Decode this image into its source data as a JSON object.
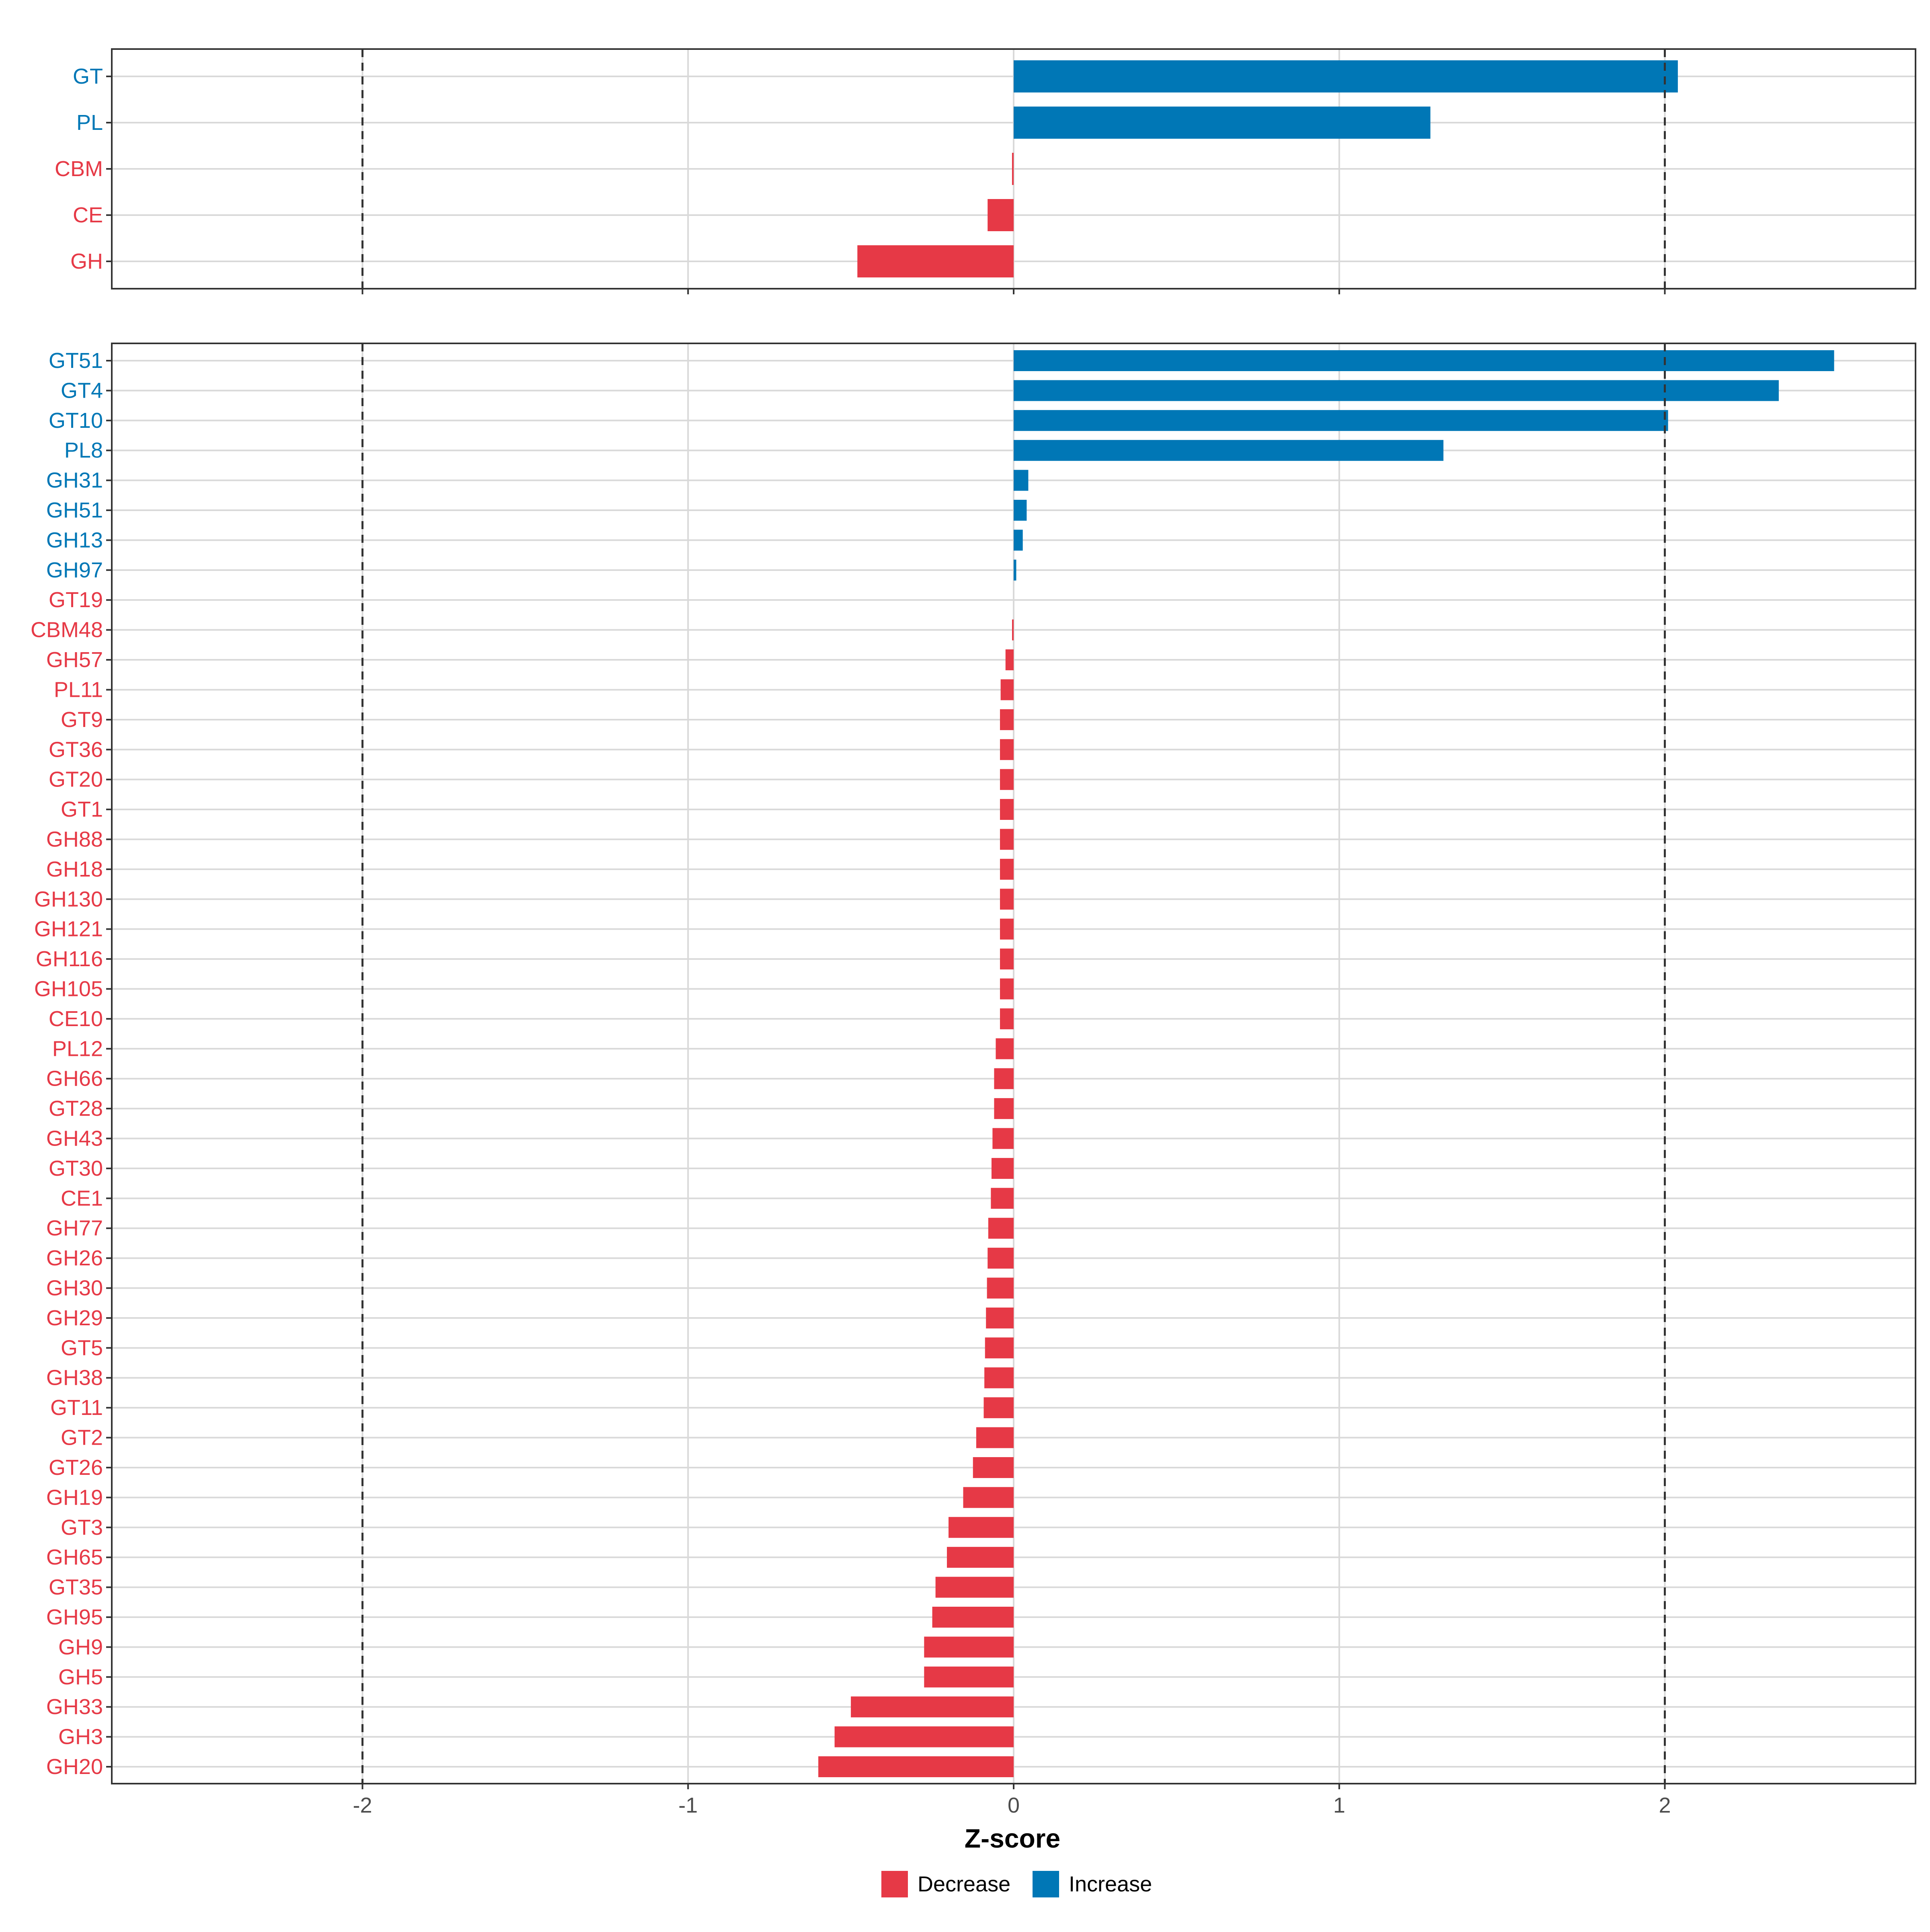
{
  "chart_data": [
    {
      "type": "bar",
      "orientation": "horizontal",
      "panel": "top",
      "categories": [
        "GT",
        "PL",
        "CBM",
        "CE",
        "GH"
      ],
      "values": [
        2.04,
        1.28,
        -0.005,
        -0.08,
        -0.48
      ],
      "xlim": [
        -2.77,
        2.77
      ],
      "reference_lines": [
        -2,
        2
      ],
      "grid": true
    },
    {
      "type": "bar",
      "orientation": "horizontal",
      "panel": "bottom",
      "categories": [
        "GT51",
        "GT4",
        "GT10",
        "PL8",
        "GH31",
        "GH51",
        "GH13",
        "GH97",
        "GT19",
        "CBM48",
        "GH57",
        "PL11",
        "GT9",
        "GT36",
        "GT20",
        "GT1",
        "GH88",
        "GH18",
        "GH130",
        "GH121",
        "GH116",
        "GH105",
        "CE10",
        "PL12",
        "GH66",
        "GT28",
        "GH43",
        "GT30",
        "CE1",
        "GH77",
        "GH26",
        "GH30",
        "GH29",
        "GT5",
        "GH38",
        "GT11",
        "GT2",
        "GT26",
        "GH19",
        "GT3",
        "GH65",
        "GT35",
        "GH95",
        "GH9",
        "GH5",
        "GH33",
        "GH3",
        "GH20"
      ],
      "values": [
        2.52,
        2.35,
        2.01,
        1.32,
        0.045,
        0.04,
        0.028,
        0.008,
        0.0,
        -0.004,
        -0.025,
        -0.04,
        -0.042,
        -0.042,
        -0.042,
        -0.042,
        -0.042,
        -0.042,
        -0.042,
        -0.042,
        -0.042,
        -0.042,
        -0.042,
        -0.055,
        -0.06,
        -0.06,
        -0.065,
        -0.068,
        -0.07,
        -0.078,
        -0.08,
        -0.082,
        -0.085,
        -0.088,
        -0.09,
        -0.092,
        -0.115,
        -0.125,
        -0.155,
        -0.2,
        -0.205,
        -0.24,
        -0.25,
        -0.275,
        -0.275,
        -0.5,
        -0.55,
        -0.6
      ],
      "xlim": [
        -2.77,
        2.77
      ],
      "reference_lines": [
        -2,
        2
      ],
      "grid": true
    }
  ],
  "x_axis": {
    "title": "Z-score",
    "ticks": [
      -2,
      -1,
      0,
      1,
      2
    ],
    "tick_labels": [
      "-2",
      "-1",
      "0",
      "1",
      "2"
    ]
  },
  "legend": {
    "position": "bottom",
    "items": [
      {
        "label": "Decrease",
        "color": "#E63946"
      },
      {
        "label": "Increase",
        "color": "#0077B6"
      }
    ]
  },
  "colors": {
    "decrease": "#E63946",
    "increase": "#0077B6",
    "grid": "#D9D9D9",
    "reference_line": "#333333",
    "panel_border": "#333333"
  }
}
